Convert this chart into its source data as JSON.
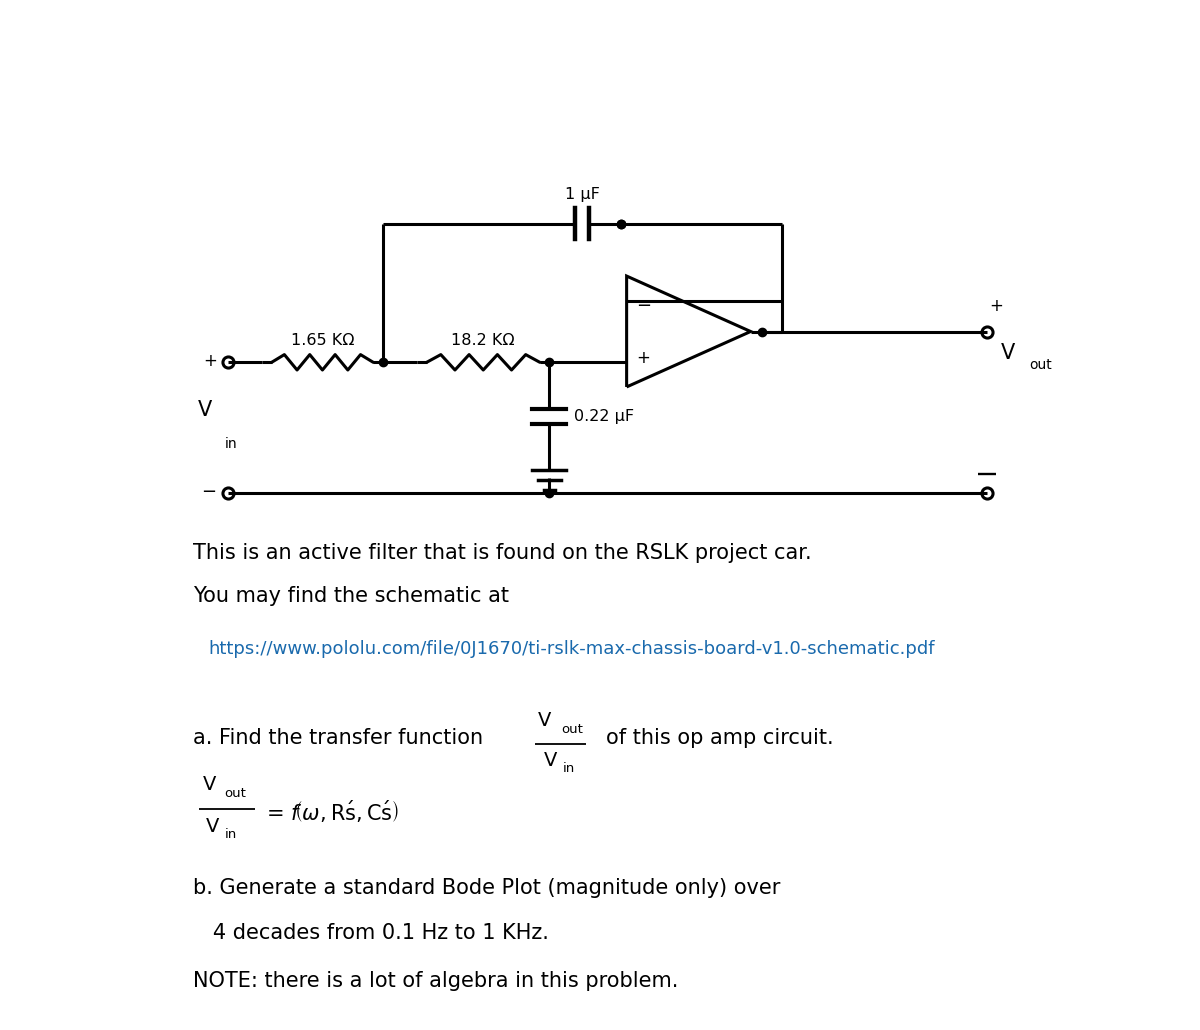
{
  "bg_color": "#ffffff",
  "text_color": "#000000",
  "link_color": "#1a6aad",
  "lc": "#000000",
  "lw": 2.2,
  "r1_label": "1.65 KΩ",
  "r2_label": "18.2 KΩ",
  "c1_label": "1 μF",
  "c2_label": "0.22 μF",
  "text1": "This is an active filter that is found on the RSLK project car.",
  "text2": "You may find the schematic at",
  "link": "https://www.pololu.com/file/0J1670/ti-rslk-max-chassis-board-v1.0-schematic.pdf",
  "part_a_prefix": "a. Find the transfer function",
  "part_a_suffix": "of this op amp circuit.",
  "part_b1": "b. Generate a standard Bode Plot (magnitude only) over",
  "part_b2": "   4 decades from 0.1 Hz to 1 KHz.",
  "note": "NOTE: there is a lot of algebra in this problem."
}
